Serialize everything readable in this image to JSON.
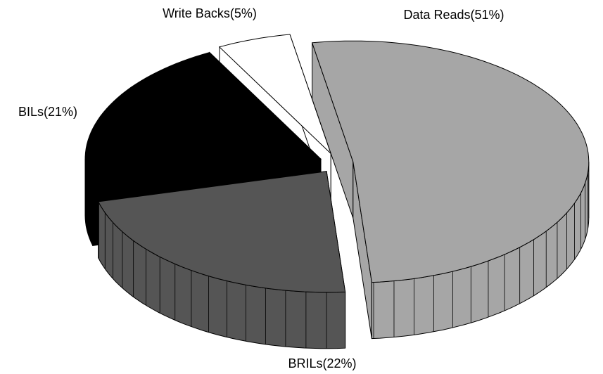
{
  "chart_data": {
    "type": "pie3d",
    "values": [
      51,
      22,
      21,
      5
    ],
    "value_labels": [
      "Data Reads(51%)",
      "BRILs(22%)",
      "BILs(21%)",
      "Write Backs(5%)"
    ],
    "colors": [
      "#a6a6a6",
      "#555555",
      "#000000",
      "#ffffff"
    ]
  }
}
